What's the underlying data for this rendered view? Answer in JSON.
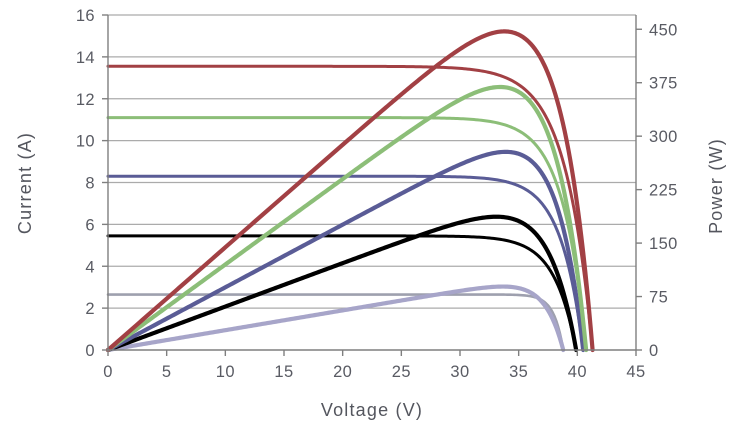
{
  "chart_data": {
    "type": "line",
    "title": "",
    "xlabel": "Voltage (V)",
    "ylabel": "Current (A)",
    "y2label": "Power (W)",
    "xlim": [
      0,
      45
    ],
    "xticks": [
      0,
      5,
      10,
      15,
      20,
      25,
      30,
      35,
      40,
      45
    ],
    "ylim": [
      0,
      16
    ],
    "yticks": [
      0,
      2,
      4,
      6,
      8,
      10,
      12,
      14,
      16
    ],
    "y2lim": [
      0,
      470
    ],
    "y2ticks": [
      0,
      75,
      150,
      225,
      300,
      375,
      450
    ],
    "grid": "horizontal",
    "legend": "none",
    "description": "Five solar PV series; each has an I-V curve (flat at Isc then dropping to zero at Voc, left axis) and a P-V curve (rising from origin to Pmax near Vmp then dropping to zero at Voc, right axis).",
    "series": [
      {
        "name": "series-1-red",
        "color_iv": "#A24044",
        "color_pv": "#A24044",
        "iv": {
          "isc_a": 13.55,
          "voc_v": 41.3
        },
        "pv": {
          "vmp_v": 33.5,
          "pmax_w": 447
        },
        "model": {
          "a_iv": 2.3,
          "a_pv": 3.0
        }
      },
      {
        "name": "series-2-green",
        "color_iv": "#8CBE78",
        "color_pv": "#8CBE78",
        "iv": {
          "isc_a": 11.1,
          "voc_v": 40.75
        },
        "pv": {
          "vmp_v": 33.4,
          "pmax_w": 369
        },
        "model": {
          "a_iv": 2.0,
          "a_pv": 2.9
        }
      },
      {
        "name": "series-3-purple",
        "color_iv": "#5A5C96",
        "color_pv": "#5A5C96",
        "iv": {
          "isc_a": 8.3,
          "voc_v": 40.5
        },
        "pv": {
          "vmp_v": 34.0,
          "pmax_w": 278
        },
        "model": {
          "a_iv": 1.9,
          "a_pv": 2.45
        }
      },
      {
        "name": "series-4-black",
        "color_iv": "#000000",
        "color_pv": "#000000",
        "iv": {
          "isc_a": 5.45,
          "voc_v": 39.9
        },
        "pv": {
          "vmp_v": 33.2,
          "pmax_w": 187
        },
        "model": {
          "a_iv": 1.85,
          "a_pv": 2.6
        }
      },
      {
        "name": "series-5-lavender",
        "color_iv": "#9EA0AE",
        "color_pv": "#A7A5C9",
        "iv": {
          "isc_a": 2.65,
          "voc_v": 38.8
        },
        "pv": {
          "vmp_v": 33.7,
          "pmax_w": 89
        },
        "model": {
          "a_iv": 0.8,
          "a_pv": 1.7
        }
      }
    ],
    "style": {
      "grid_color": "#ABABAB",
      "axis_color": "#7F7F7F",
      "tick_label_color": "#595b63",
      "axis_title_color": "#54565e",
      "background": "#FFFFFF"
    }
  }
}
